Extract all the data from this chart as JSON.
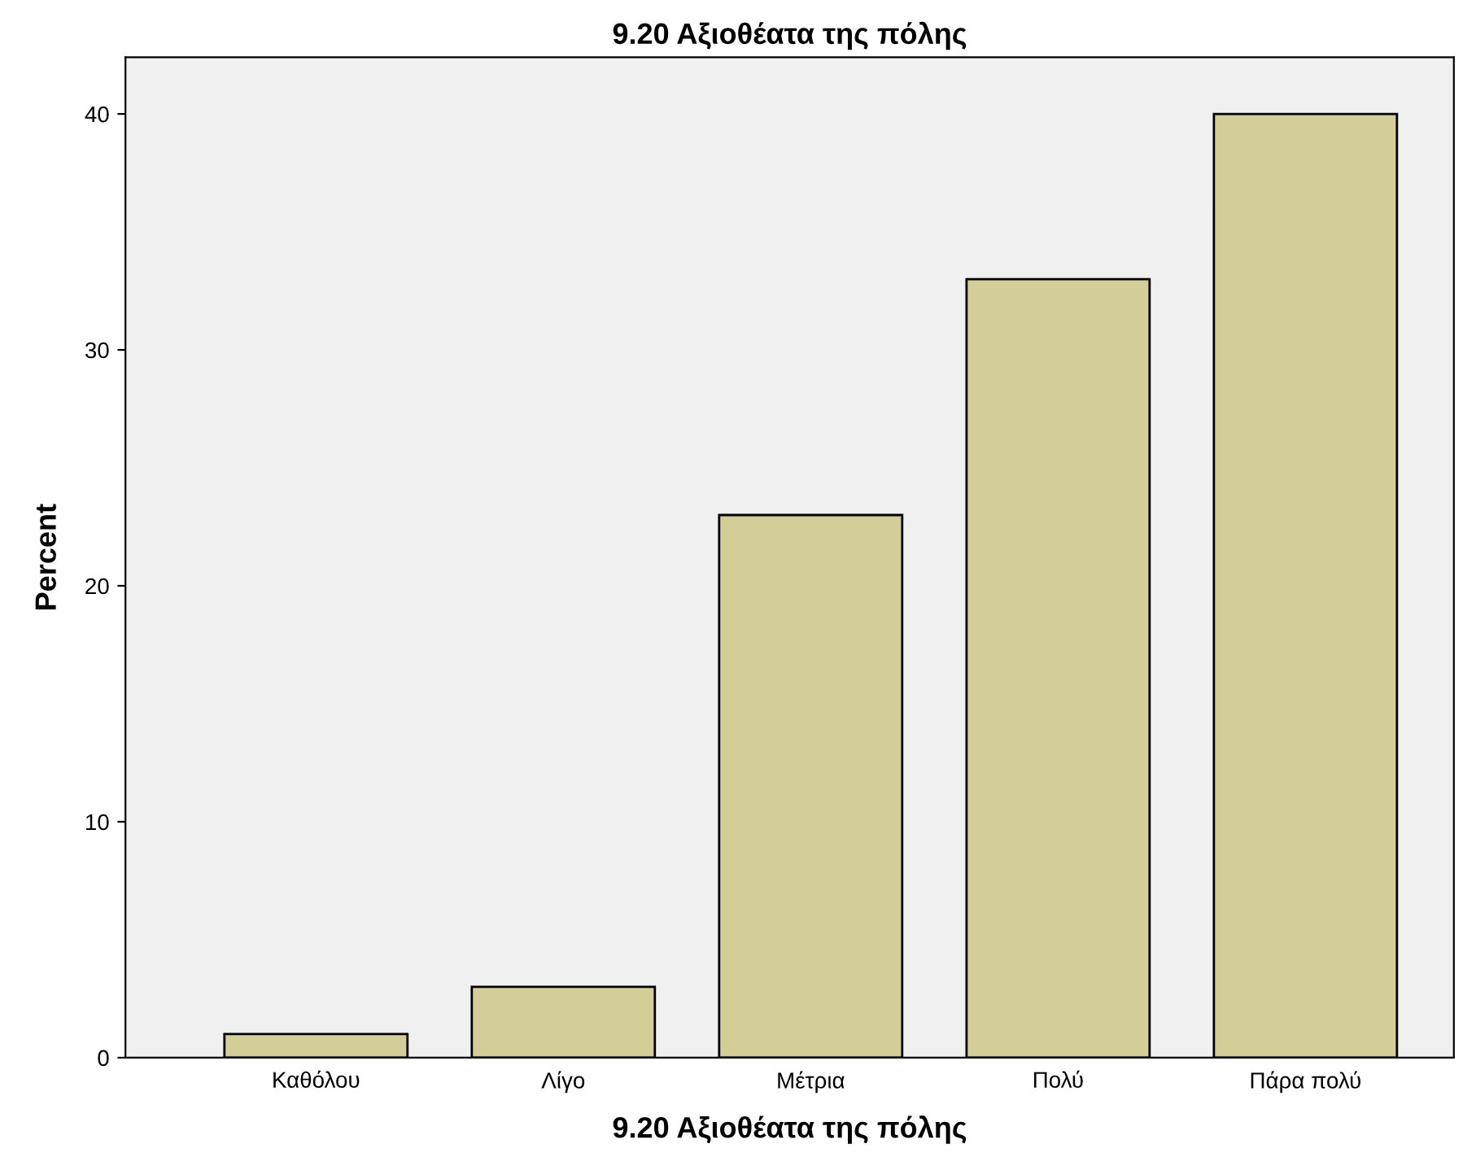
{
  "chart_data": {
    "type": "bar",
    "title": "9.20 Αξιοθέατα της πόλης",
    "xlabel": "9.20 Αξιοθέατα της πόλης",
    "ylabel": "Percent",
    "categories": [
      "Καθόλου",
      "Λίγο",
      "Μέτρια",
      "Πολύ",
      "Πάρα πολύ"
    ],
    "values": [
      1,
      3,
      23,
      33,
      40
    ],
    "color": "#d3ce97",
    "ylim": [
      0,
      42.4
    ],
    "yticks": [
      0,
      10,
      20,
      30,
      40
    ],
    "grid": false
  }
}
